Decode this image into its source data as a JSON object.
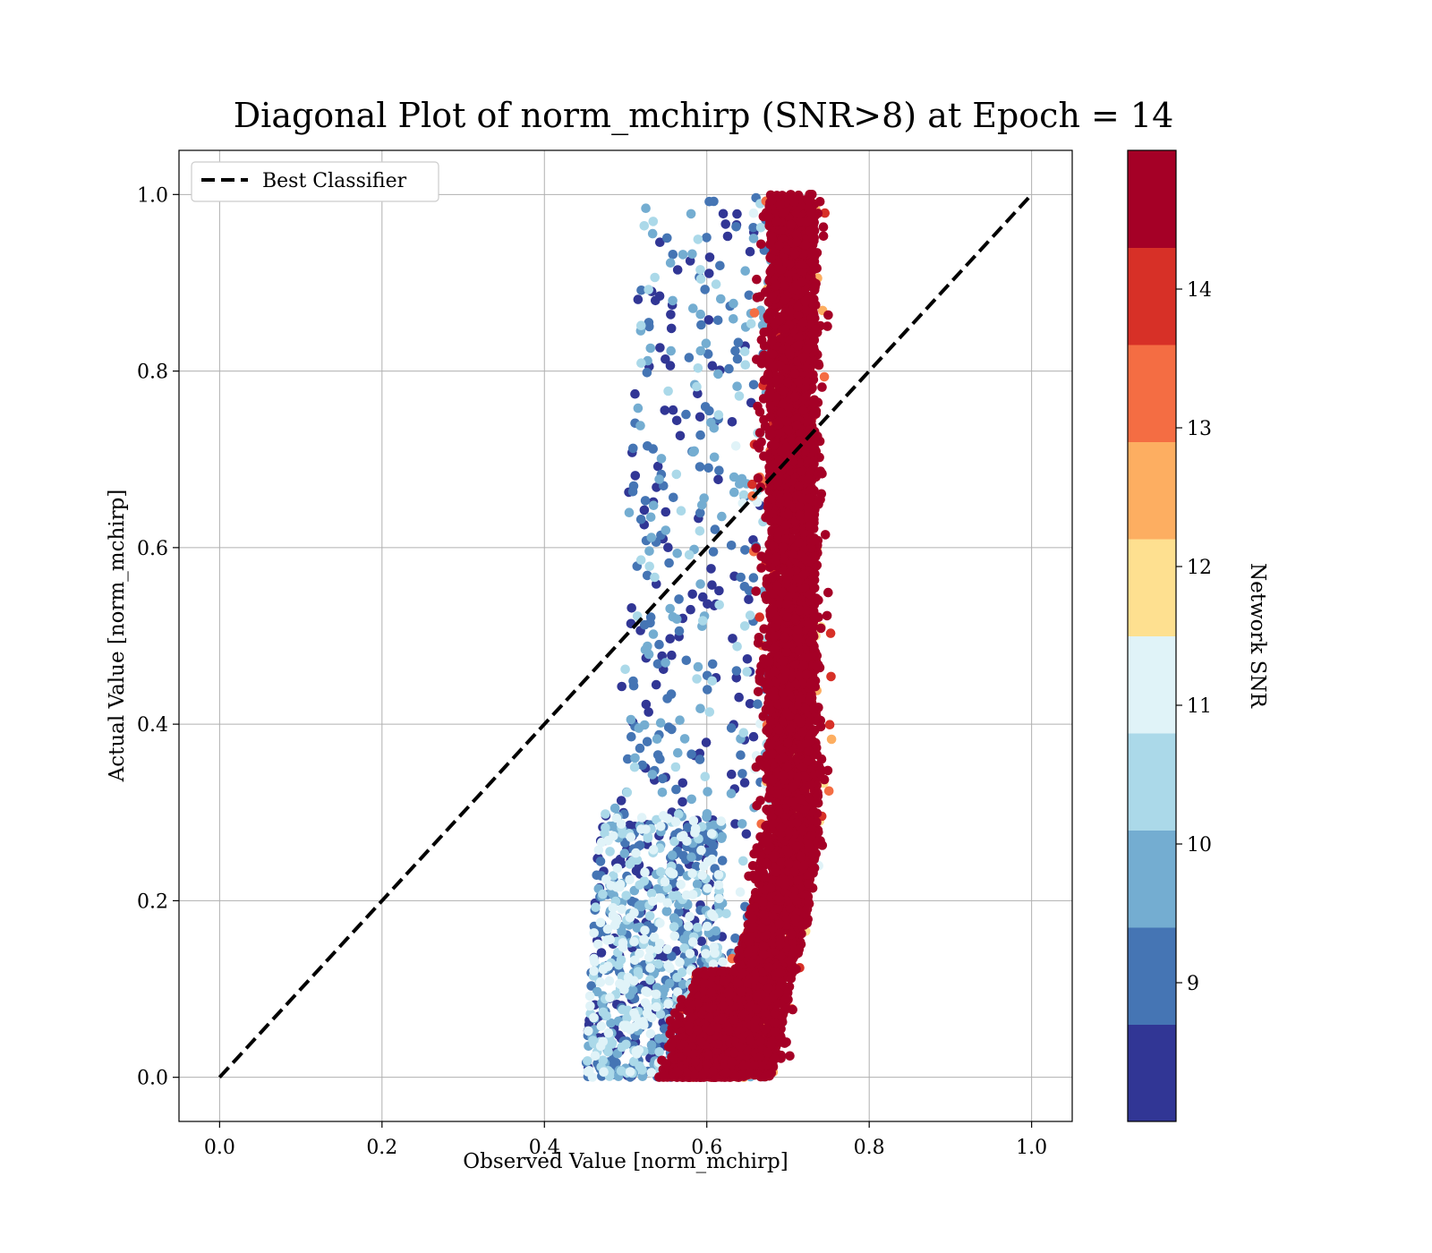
{
  "chart_data": {
    "type": "scatter",
    "title": "Diagonal Plot of norm_mchirp (SNR>8) at Epoch = 14",
    "xlabel": "Observed Value [norm_mchirp]",
    "ylabel": "Actual Value [norm_mchirp]",
    "xlim": [
      -0.05,
      1.05
    ],
    "ylim": [
      -0.05,
      1.05
    ],
    "x_ticks": [
      "0.0",
      "0.2",
      "0.4",
      "0.6",
      "0.8",
      "1.0"
    ],
    "y_ticks": [
      "0.0",
      "0.2",
      "0.4",
      "0.6",
      "0.8",
      "1.0"
    ],
    "grid": true,
    "legend": {
      "placement": "top-left",
      "entries": [
        "Best Classifier"
      ]
    },
    "reference_line": {
      "name": "Best Classifier",
      "style": "dashed",
      "color": "#000000",
      "x": [
        0,
        1
      ],
      "y": [
        0,
        1
      ]
    },
    "colorbar": {
      "label": "Network SNR",
      "range": [
        8,
        15
      ],
      "ticks": [
        "9",
        "10",
        "11",
        "12",
        "13",
        "14"
      ],
      "colors": [
        "#313695",
        "#4575b4",
        "#74add1",
        "#abd9e9",
        "#e0f3f8",
        "#fee090",
        "#fdae61",
        "#f46d43",
        "#d73027",
        "#a50026"
      ]
    },
    "point_clusters": [
      {
        "name_hint": "low-snr-scatter",
        "x_range": [
          0.45,
          0.62
        ],
        "y_range": [
          0.0,
          0.3
        ],
        "snr_range": [
          8,
          11.5
        ]
      },
      {
        "name_hint": "low-snr-upper",
        "x_range": [
          0.47,
          0.62
        ],
        "y_range": [
          0.3,
          1.0
        ],
        "snr_range": [
          8,
          10.5
        ]
      },
      {
        "name_hint": "high-snr-band",
        "x_range": [
          0.61,
          0.78
        ],
        "y_range": [
          0.0,
          1.0
        ],
        "snr_range": [
          12.5,
          15
        ]
      },
      {
        "name_hint": "dense-bottom-blob",
        "x_range": [
          0.5,
          0.7
        ],
        "y_range": [
          0.0,
          0.12
        ],
        "snr_range": [
          14,
          15
        ]
      }
    ]
  }
}
